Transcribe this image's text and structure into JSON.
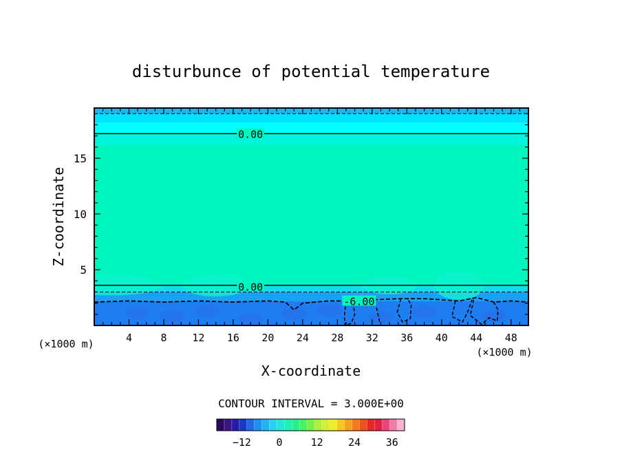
{
  "chart_data": {
    "type": "contour",
    "title": "disturbunce of potential temperature",
    "xlabel": "X-coordinate",
    "ylabel": "Z-coordinate",
    "x_unit": "(×1000 m)",
    "y_unit": "(×1000 m)",
    "xlim": [
      0,
      50
    ],
    "ylim": [
      0,
      19.5
    ],
    "x_ticks": [
      4,
      8,
      12,
      16,
      20,
      24,
      28,
      32,
      36,
      40,
      44,
      48
    ],
    "y_ticks": [
      5,
      10,
      15
    ],
    "grid": false,
    "contour_interval_text": "CONTOUR INTERVAL = 3.000E+00",
    "contour_labels": [
      {
        "text": "0.00",
        "x": 18.0,
        "y": 17.2
      },
      {
        "text": "0.00",
        "x": 18.0,
        "y": 3.5
      },
      {
        "text": "-6.00",
        "x": 30.5,
        "y": 2.2
      }
    ],
    "fill_bands": [
      {
        "z_from": 19.0,
        "z_to": 19.5,
        "color": "#19b8f5"
      },
      {
        "z_from": 18.2,
        "z_to": 19.0,
        "color": "#00e0ff"
      },
      {
        "z_from": 17.2,
        "z_to": 18.2,
        "color": "#00ffff"
      },
      {
        "z_from": 16.2,
        "z_to": 17.2,
        "color": "#00f5dd"
      },
      {
        "z_from": 3.6,
        "z_to": 16.2,
        "color": "#00f5bf"
      },
      {
        "z_from": 3.0,
        "z_to": 3.6,
        "color": "#15dcec"
      },
      {
        "z_from": 2.2,
        "z_to": 3.0,
        "color": "#18a2f5"
      },
      {
        "z_from": 0.0,
        "z_to": 2.2,
        "color": "#1e7df0"
      }
    ],
    "colorbar": {
      "ticks": [
        -12,
        0,
        12,
        24,
        36
      ],
      "min": -20,
      "max": 40,
      "colors": [
        "#2a0a5e",
        "#3a1585",
        "#281aa8",
        "#1538c5",
        "#1e68e8",
        "#1e90f0",
        "#21b4f5",
        "#25d2f0",
        "#1ee6d8",
        "#20f0b4",
        "#22f08a",
        "#46f264",
        "#78f046",
        "#aaf03c",
        "#d2f032",
        "#f0ec28",
        "#f5c81e",
        "#f5a01e",
        "#f57a1e",
        "#f0501e",
        "#e6281e",
        "#e61e46",
        "#ec4678",
        "#f07aaa",
        "#f5b4d2"
      ]
    }
  }
}
